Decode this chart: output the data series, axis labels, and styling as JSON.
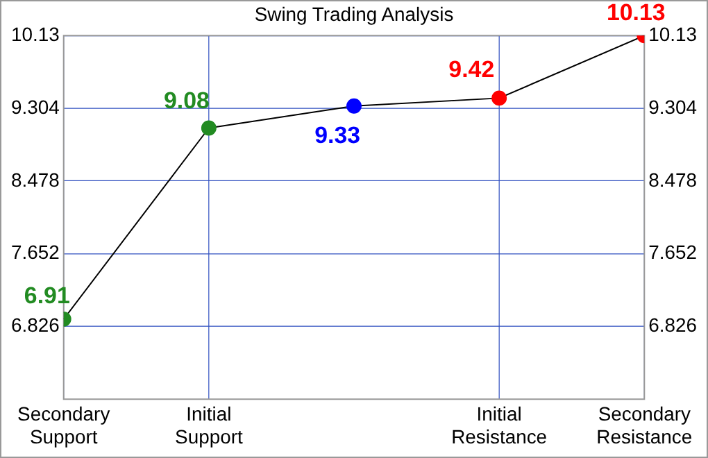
{
  "chart_data": {
    "type": "line",
    "title": "Swing Trading Analysis",
    "categories": [
      "Secondary Support",
      "Initial Support",
      null,
      "Initial Resistance",
      "Secondary Resistance"
    ],
    "ylim": [
      6.0,
      10.13
    ],
    "yticks": [
      6.826,
      7.652,
      8.478,
      9.304,
      10.13
    ],
    "y2lim": [
      6.0,
      10.13
    ],
    "y2ticks": [
      6.826,
      7.652,
      8.478,
      9.304,
      10.13
    ],
    "series": [
      {
        "color": "#000000",
        "values": [
          6.91,
          9.08,
          9.33,
          9.42,
          10.13
        ],
        "colors": [
          "#228b22",
          "#228b22",
          "#0000ff",
          "#ff0000",
          "#ff0000"
        ]
      }
    ],
    "data_labels": true,
    "grid": true,
    "legend": false,
    "marker": "circle",
    "line_style": "solid"
  }
}
